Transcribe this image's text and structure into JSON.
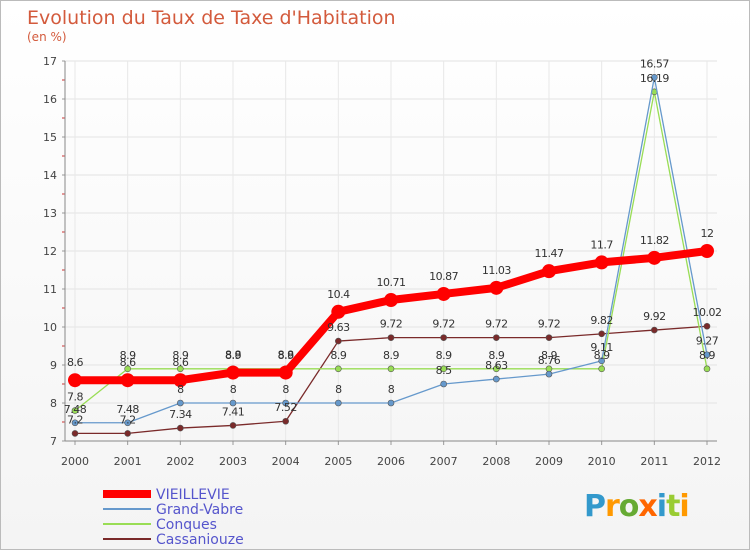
{
  "chart_data": {
    "type": "line",
    "title": "Evolution du Taux de Taxe d'Habitation",
    "subtitle": "(en %)",
    "xlabel": "",
    "ylabel": "",
    "categories": [
      "2000",
      "2001",
      "2002",
      "2003",
      "2004",
      "2005",
      "2006",
      "2007",
      "2008",
      "2009",
      "2010",
      "2011",
      "2012"
    ],
    "ylim": [
      7,
      17
    ],
    "yticks": [
      "7",
      "8",
      "9",
      "10",
      "11",
      "12",
      "13",
      "14",
      "15",
      "16",
      "17"
    ],
    "grid": true,
    "legend_position": "bottom-left",
    "series": [
      {
        "name": "VIEILLEVIE",
        "color": "#ff0000",
        "values": [
          8.6,
          8.6,
          8.6,
          8.8,
          8.8,
          10.4,
          10.71,
          10.87,
          11.03,
          11.47,
          11.7,
          11.82,
          12
        ],
        "labels": [
          "8.6",
          "8.6",
          "8.6",
          "8.8",
          "8.8",
          "10.4",
          "10.71",
          "10.87",
          "11.03",
          "11.47",
          "11.7",
          "11.82",
          "12"
        ]
      },
      {
        "name": "Grand-Vabre",
        "color": "#6699cc",
        "values": [
          7.48,
          7.48,
          8,
          8,
          8,
          8,
          8,
          8.5,
          8.63,
          8.76,
          9.11,
          16.57,
          9.27
        ],
        "labels": [
          "7.48",
          "7.48",
          "8",
          "8",
          "8",
          "8",
          "8",
          "8.5",
          "8.63",
          "8.76",
          "9.11",
          "16.57",
          "9.27"
        ]
      },
      {
        "name": "Conques",
        "color": "#99dd55",
        "values": [
          7.8,
          8.9,
          8.9,
          8.9,
          8.9,
          8.9,
          8.9,
          8.9,
          8.9,
          8.9,
          8.9,
          16.19,
          8.9
        ],
        "labels": [
          "7.8",
          "8.9",
          "8.9",
          "8.9",
          "8.9",
          "8.9",
          "8.9",
          "8.9",
          "8.9",
          "8.9",
          "8.9",
          "16.19",
          "8.9"
        ]
      },
      {
        "name": "Cassaniouze",
        "color": "#7a2a2a",
        "values": [
          7.2,
          7.2,
          7.34,
          7.41,
          7.52,
          9.63,
          9.72,
          9.72,
          9.72,
          9.72,
          9.82,
          9.92,
          10.02
        ],
        "labels": [
          "7.2",
          "7.2",
          "7.34",
          "7.41",
          "7.52",
          "9.63",
          "9.72",
          "9.72",
          "9.72",
          "9.72",
          "9.82",
          "9.92",
          "10.02"
        ]
      }
    ]
  },
  "logo": {
    "text": "Proxiti",
    "letter_colors": [
      "#3399cc",
      "#ff9900",
      "#66aa33",
      "#ff6600",
      "#3399cc",
      "#99cc33",
      "#ff9900"
    ]
  }
}
